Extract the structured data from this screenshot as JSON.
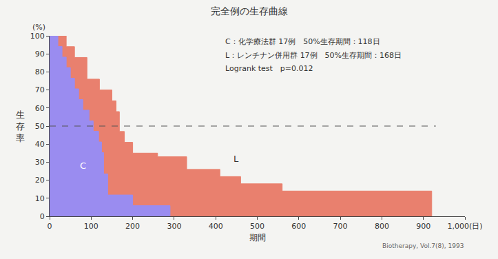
{
  "chart_data": {
    "type": "step_area",
    "title": "完全例の生存曲線",
    "x_label": "期間",
    "y_label": "生存率",
    "y_unit": "(%)",
    "xlim": [
      0,
      1000
    ],
    "ylim": [
      0,
      100
    ],
    "xticks": [
      0,
      100,
      200,
      300,
      400,
      500,
      600,
      700,
      800,
      900,
      {
        "value": 1000,
        "label": "1,000(日)"
      }
    ],
    "yticks": [
      0,
      10,
      20,
      30,
      40,
      50,
      60,
      70,
      80,
      90,
      100
    ],
    "grid": false,
    "notes": [
      "C：化学療法群 17例　50%生存期間：118日",
      "L：レンチナン併用群 17例　50%生存期間：168日",
      "Logrank test　p=0.012"
    ],
    "source": "Biotherapy, Vol.7(8), 1993",
    "reference_line": {
      "y": 50,
      "x": [
        0,
        930
      ],
      "line_style": "dash"
    },
    "series": [
      {
        "name": "L",
        "color": "#e9806e",
        "x": [
          0,
          40,
          60,
          90,
          120,
          150,
          160,
          168,
          180,
          200,
          260,
          330,
          410,
          460,
          560,
          920
        ],
        "values": [
          100,
          94,
          88,
          76,
          70,
          64,
          58,
          47,
          41,
          35,
          33,
          26,
          22,
          18,
          14,
          0
        ],
        "label_position": [
          450,
          32
        ]
      },
      {
        "name": "C",
        "color": "#9a8cf0",
        "x": [
          0,
          20,
          30,
          40,
          50,
          60,
          70,
          80,
          95,
          105,
          118,
          125,
          130,
          140,
          200,
          290
        ],
        "values": [
          100,
          94.1,
          88.2,
          82.4,
          76.5,
          70.6,
          64.7,
          58.8,
          52.9,
          47.1,
          41.2,
          35.3,
          23.5,
          11.8,
          5.9,
          0
        ],
        "label_position": [
          80,
          28
        ]
      }
    ]
  }
}
